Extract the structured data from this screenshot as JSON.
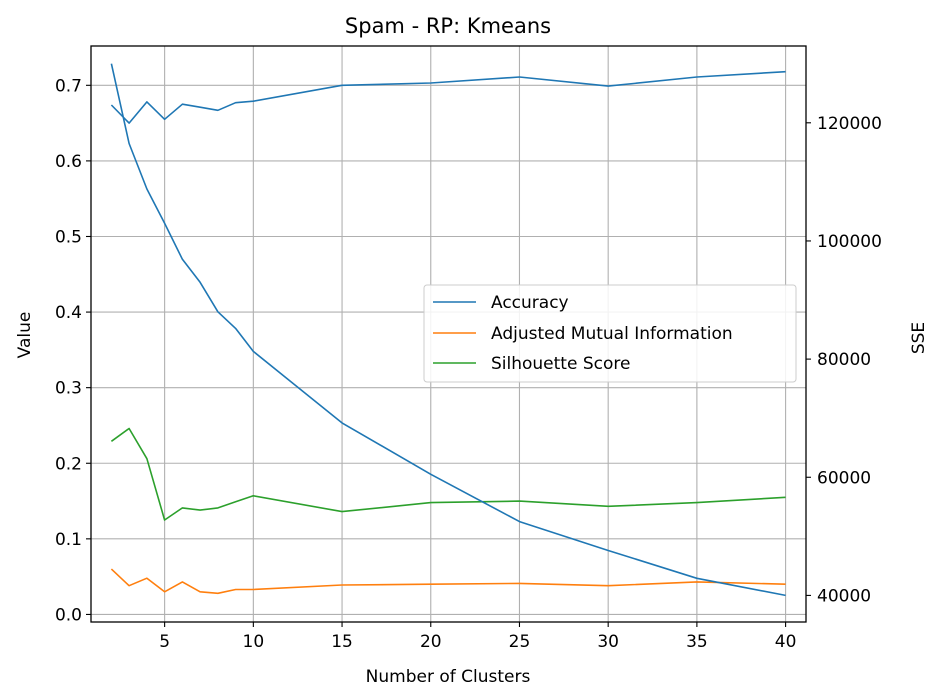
{
  "chart_data": {
    "type": "line",
    "title": "Spam - RP: Kmeans",
    "xlabel": "Number of Clusters",
    "ylabel": "Value",
    "y2label": "SSE",
    "xlim": [
      0.85,
      41.15
    ],
    "ylim": [
      -0.01,
      0.752
    ],
    "y2lim": [
      35500,
      133000
    ],
    "xticks": [
      5,
      10,
      15,
      20,
      25,
      30,
      35,
      40
    ],
    "yticks": [
      0.0,
      0.1,
      0.2,
      0.3,
      0.4,
      0.5,
      0.6,
      0.7
    ],
    "y2ticks": [
      40000,
      60000,
      80000,
      100000,
      120000
    ],
    "grid": true,
    "legend_position": "center-right",
    "x": [
      2,
      3,
      4,
      5,
      6,
      7,
      8,
      9,
      10,
      15,
      20,
      25,
      30,
      35,
      40
    ],
    "series": [
      {
        "name": "Accuracy",
        "axis": "left",
        "color": "#1f77b4",
        "values": [
          0.674,
          0.65,
          0.678,
          0.655,
          0.675,
          0.671,
          0.667,
          0.677,
          0.679,
          0.7,
          0.703,
          0.711,
          0.699,
          0.711,
          0.718
        ]
      },
      {
        "name": "Adjusted Mutual Information",
        "axis": "left",
        "color": "#ff7f0e",
        "values": [
          0.06,
          0.038,
          0.048,
          0.03,
          0.043,
          0.03,
          0.028,
          0.033,
          0.033,
          0.039,
          0.04,
          0.041,
          0.038,
          0.043,
          0.04
        ]
      },
      {
        "name": "Silhouette Score",
        "axis": "left",
        "color": "#2ca02c",
        "values": [
          0.229,
          0.246,
          0.206,
          0.125,
          0.141,
          0.138,
          0.141,
          0.149,
          0.157,
          0.136,
          0.148,
          0.15,
          0.143,
          0.148,
          0.155
        ]
      },
      {
        "axis": "right",
        "color": "#1f77b4",
        "values": [
          130000,
          116500,
          108800,
          103000,
          96900,
          93000,
          88000,
          85200,
          81300,
          69200,
          60500,
          52500,
          47600,
          42900,
          40000
        ]
      }
    ]
  }
}
